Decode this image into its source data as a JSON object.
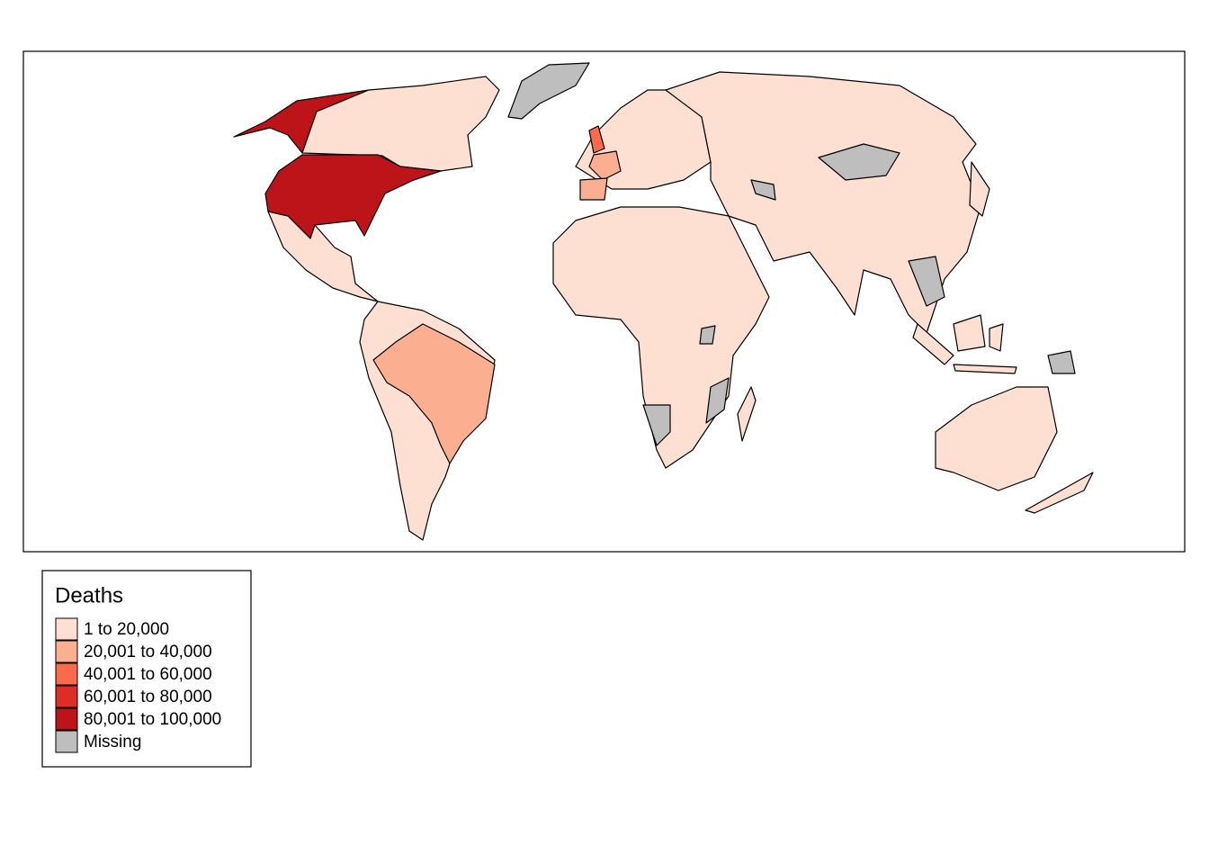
{
  "legend": {
    "title": "Deaths",
    "items": [
      {
        "label": "1 to 20,000",
        "color": "#fee0d2"
      },
      {
        "label": "20,001 to 40,000",
        "color": "#fcae91"
      },
      {
        "label": "40,001 to 60,000",
        "color": "#fb6a4a"
      },
      {
        "label": "60,001 to 80,000",
        "color": "#de2d26"
      },
      {
        "label": "80,001 to 100,000",
        "color": "#bd1419"
      },
      {
        "label": "Missing",
        "color": "#bebebe"
      }
    ]
  }
}
